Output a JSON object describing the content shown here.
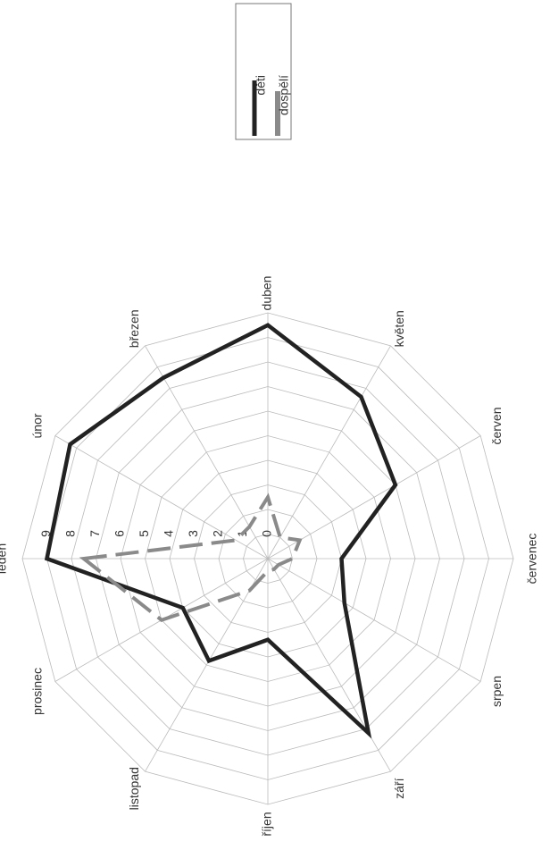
{
  "chart_data": {
    "type": "radar",
    "categories": [
      "leden",
      "únor",
      "březen",
      "duben",
      "květen",
      "červen",
      "červenec",
      "srpen",
      "září",
      "říjen",
      "listopad",
      "prosinec"
    ],
    "series": [
      {
        "name": "děti",
        "color": "#222222",
        "values": [
          9,
          9.3,
          8.5,
          9.5,
          7.6,
          6,
          3,
          3.6,
          8.2,
          3.3,
          4.8,
          4
        ]
      },
      {
        "name": "dospělí",
        "color": "#8a8a8a",
        "values": [
          7.5,
          1.5,
          1.5,
          2.5,
          1,
          1.5,
          1,
          0.5,
          0.5,
          0.5,
          1.5,
          5
        ]
      }
    ],
    "ylim": [
      0,
      10
    ],
    "yticks": [
      0,
      1,
      2,
      3,
      4,
      5,
      6,
      7,
      8,
      9
    ],
    "grid": true,
    "legend": "top-right"
  }
}
